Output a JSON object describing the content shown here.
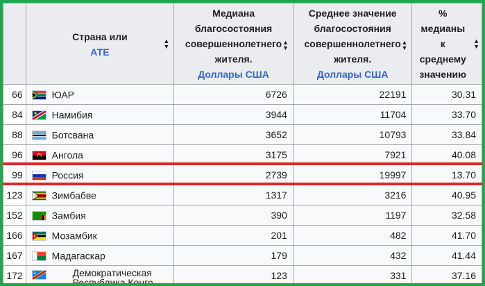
{
  "header": {
    "country": {
      "title": "Страна или",
      "sub": "АТЕ"
    },
    "median": {
      "lines": [
        "Медиана",
        "благосостояния",
        "совершеннолетнего",
        "жителя."
      ],
      "currency": "Доллары США"
    },
    "mean": {
      "lines": [
        "Среднее значение",
        "благосостояния",
        "совершеннолетнего",
        "жителя."
      ],
      "currency": "Доллары США"
    },
    "ratio": {
      "lines": [
        "%",
        "медианы",
        "к",
        "среднему",
        "значению"
      ]
    }
  },
  "sort_icon": "sort-arrows-icon",
  "rows": [
    {
      "rank": "66",
      "country": "ЮАР",
      "flag": "south-africa-flag",
      "median": "6726",
      "mean": "22191",
      "ratio": "30.31"
    },
    {
      "rank": "84",
      "country": "Намибия",
      "flag": "namibia-flag",
      "median": "3944",
      "mean": "11704",
      "ratio": "33.70"
    },
    {
      "rank": "88",
      "country": "Ботсвана",
      "flag": "botswana-flag",
      "median": "3652",
      "mean": "10793",
      "ratio": "33.84"
    },
    {
      "rank": "96",
      "country": "Ангола",
      "flag": "angola-flag",
      "median": "3175",
      "mean": "7921",
      "ratio": "40.08"
    },
    {
      "rank": "99",
      "country": "Россия",
      "flag": "russia-flag",
      "median": "2739",
      "mean": "19997",
      "ratio": "13.70"
    },
    {
      "rank": "123",
      "country": "Зимбабве",
      "flag": "zimbabwe-flag",
      "median": "1317",
      "mean": "3216",
      "ratio": "40.95"
    },
    {
      "rank": "152",
      "country": "Замбия",
      "flag": "zambia-flag",
      "median": "390",
      "mean": "1197",
      "ratio": "32.58"
    },
    {
      "rank": "166",
      "country": "Мозамбик",
      "flag": "mozambique-flag",
      "median": "201",
      "mean": "482",
      "ratio": "41.70"
    },
    {
      "rank": "167",
      "country": "Мадагаскар",
      "flag": "madagascar-flag",
      "median": "179",
      "mean": "432",
      "ratio": "41.44"
    },
    {
      "rank": "172",
      "country_lines": [
        "Демократическая",
        "Республика Конго"
      ],
      "flag": "dr-congo-flag",
      "median": "123",
      "mean": "331",
      "ratio": "37.16"
    }
  ],
  "colors": {
    "frame": "#21a64a",
    "highlight": "#d52b2b",
    "link": "#3366cc"
  }
}
